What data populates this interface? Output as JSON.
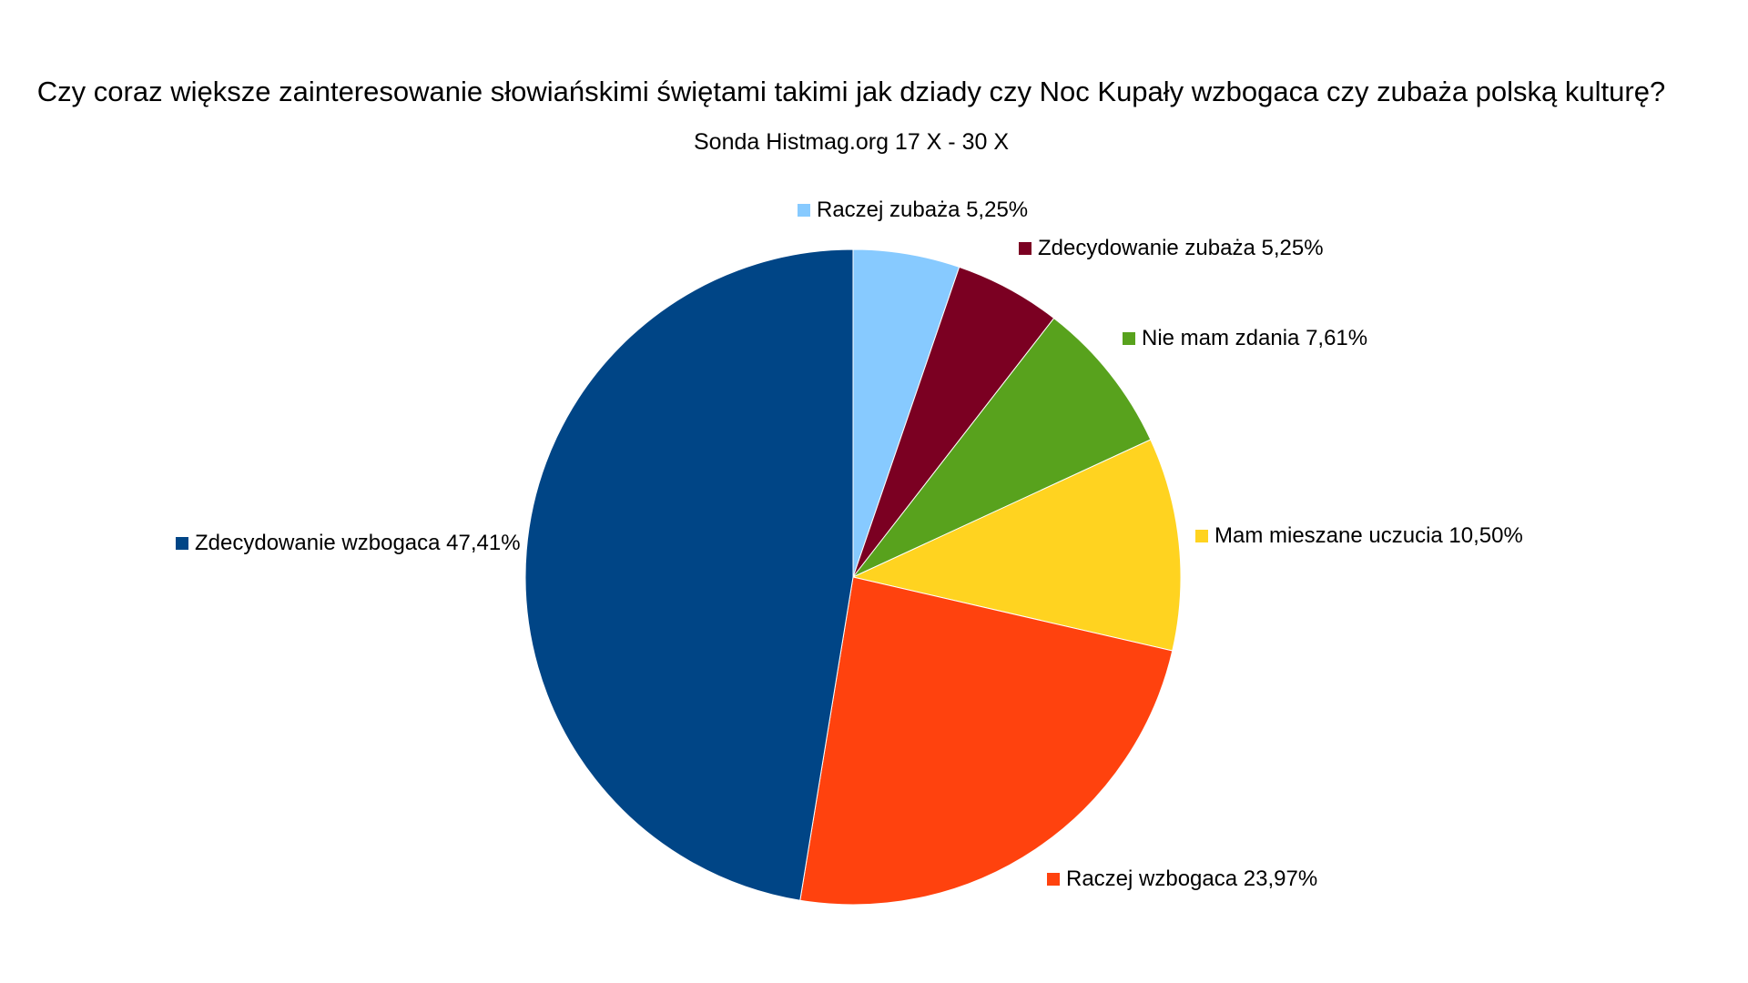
{
  "chart_data": {
    "type": "pie",
    "title": "Czy coraz większe zainteresowanie słowiańskimi świętami takimi jak dziady czy Noc Kupały wzbogaca czy zubaża polską kulturę?",
    "subtitle": "Sonda Histmag.org 17 X - 30 X",
    "start_angle": "top",
    "direction": "clockwise",
    "slices": [
      {
        "label": "Raczej zubaża 5,25%",
        "name": "Raczej zubaża",
        "value": 5.25,
        "color": "#87CAFF"
      },
      {
        "label": "Zdecydowanie zubaża 5,25%",
        "name": "Zdecydowanie zubaża",
        "value": 5.25,
        "color": "#7B0022"
      },
      {
        "label": "Nie mam zdania 7,61%",
        "name": "Nie mam zdania",
        "value": 7.61,
        "color": "#58A21D"
      },
      {
        "label": "Mam mieszane uczucia 10,50%",
        "name": "Mam mieszane uczucia",
        "value": 10.5,
        "color": "#FFD320"
      },
      {
        "label": "Raczej wzbogaca 23,97%",
        "name": "Raczej wzbogaca",
        "value": 23.97,
        "color": "#FF420E"
      },
      {
        "label": "Zdecydowanie wzbogaca 47,41%",
        "name": "Zdecydowanie wzbogaca",
        "value": 47.41,
        "color": "#004586"
      }
    ]
  }
}
